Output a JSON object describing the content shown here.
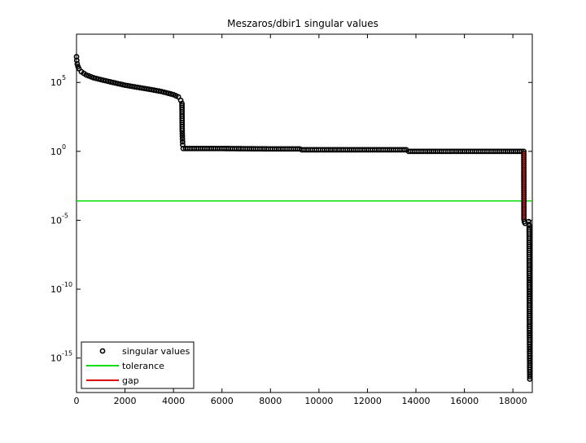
{
  "chart_data": {
    "type": "scatter",
    "title": "Meszaros/dbir1 singular values",
    "xlabel": "",
    "ylabel": "",
    "xlim": [
      0,
      18800
    ],
    "ylim_log10": [
      -17.5,
      8.5
    ],
    "y_scale": "log",
    "grid": false,
    "legend_position": "bottom-left",
    "x_ticks": [
      "0",
      "2000",
      "4000",
      "6000",
      "8000",
      "10000",
      "12000",
      "14000",
      "16000",
      "18000"
    ],
    "y_ticks": [
      {
        "base": "10",
        "exp": "5"
      },
      {
        "base": "10",
        "exp": "0"
      },
      {
        "base": "10",
        "exp": "-5"
      },
      {
        "base": "10",
        "exp": "-10"
      },
      {
        "base": "10",
        "exp": "-15"
      }
    ],
    "series": [
      {
        "name": "singular values",
        "marker": "circle",
        "color": "#000000",
        "points": [
          [
            1,
            7300000.0
          ],
          [
            10,
            4000000.0
          ],
          [
            30,
            2200000.0
          ],
          [
            60,
            1400000.0
          ],
          [
            100,
            1000000.0
          ],
          [
            200,
            600000.0
          ],
          [
            400,
            350000.0
          ],
          [
            700,
            220000.0
          ],
          [
            1000,
            160000.0
          ],
          [
            1500,
            100000.0
          ],
          [
            2000,
            63000.0
          ],
          [
            2500,
            45000.0
          ],
          [
            3000,
            32000.0
          ],
          [
            3500,
            22000.0
          ],
          [
            4000,
            13000.0
          ],
          [
            4200,
            9000.0
          ],
          [
            4300,
            5000.0
          ],
          [
            4350,
            3000.0
          ],
          [
            4360,
            30
          ],
          [
            4370,
            8
          ],
          [
            4380,
            3
          ],
          [
            4400,
            1.6
          ],
          [
            4500,
            1.6
          ],
          [
            6000,
            1.6
          ],
          [
            8000,
            1.5
          ],
          [
            9200,
            1.5
          ],
          [
            9300,
            1.3
          ],
          [
            11000,
            1.3
          ],
          [
            13600,
            1.3
          ],
          [
            13700,
            1.0
          ],
          [
            16000,
            1.0
          ],
          [
            18450,
            1.0
          ],
          [
            18455,
            1.2e-05
          ],
          [
            18470,
            8e-06
          ],
          [
            18500,
            6e-06
          ],
          [
            18650,
            8e-06
          ],
          [
            18660,
            5e-06
          ],
          [
            18670,
            4e-06
          ],
          [
            18675,
            1e-09
          ],
          [
            18676,
            3e-10
          ],
          [
            18677,
            1e-10
          ],
          [
            18678,
            3e-11
          ],
          [
            18680,
            1e-11
          ],
          [
            18682,
            1e-13
          ],
          [
            18684,
            3e-14
          ],
          [
            18686,
            1e-14
          ],
          [
            18688,
            3e-15
          ],
          [
            18690,
            1e-15
          ],
          [
            18692,
            3e-16
          ],
          [
            18694,
            1e-16
          ],
          [
            18696,
            3e-17
          ]
        ]
      },
      {
        "name": "tolerance",
        "color": "#00dd00",
        "y_value": 0.00025
      },
      {
        "name": "gap",
        "color": "#dd0000",
        "x_value": 18450,
        "y_range": [
          1.2e-05,
          1.0
        ]
      }
    ]
  }
}
